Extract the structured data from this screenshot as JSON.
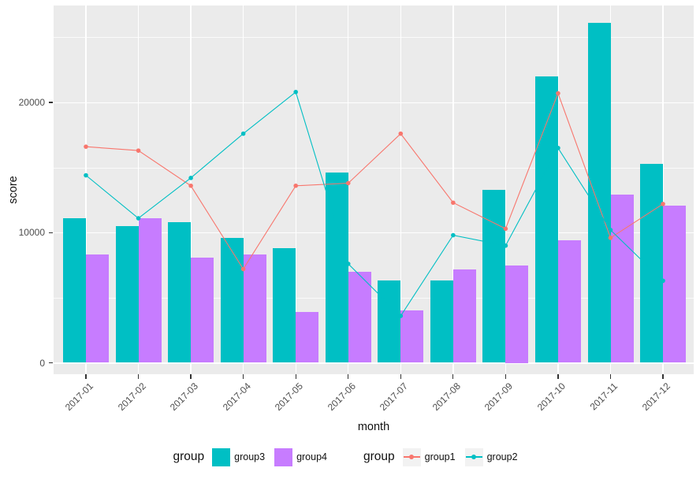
{
  "y_axis": {
    "title": "score",
    "ticks": [
      {
        "label": "0",
        "value": 0
      },
      {
        "label": "10000",
        "value": 10000
      },
      {
        "label": "20000",
        "value": 20000
      }
    ]
  },
  "x_axis": {
    "title": "month"
  },
  "legend": {
    "groups": [
      {
        "title": "group",
        "items": [
          {
            "label": "group3",
            "color": "#00BFC4",
            "type": "fill"
          },
          {
            "label": "group4",
            "color": "#C77CFF",
            "type": "fill"
          }
        ]
      },
      {
        "title": "group",
        "items": [
          {
            "label": "group1",
            "color": "#F8766D",
            "type": "line"
          },
          {
            "label": "group2",
            "color": "#00BFC4",
            "type": "line"
          }
        ]
      }
    ]
  },
  "colors": {
    "panel_background": "#EBEBEB",
    "gridline": "#FFFFFF",
    "bar_group3": "#00BFC4",
    "bar_group4": "#C77CFF",
    "line_group1": "#F8766D",
    "line_group2": "#00BFC4",
    "axis_text": "#4D4D4D"
  },
  "chart_data": {
    "type": "bar",
    "title": "",
    "xlabel": "month",
    "ylabel": "score",
    "categories": [
      "2017-01",
      "2017-02",
      "2017-03",
      "2017-04",
      "2017-05",
      "2017-06",
      "2017-07",
      "2017-08",
      "2017-09",
      "2017-10",
      "2017-11",
      "2017-12"
    ],
    "series": [
      {
        "name": "group3",
        "type": "bar",
        "color": "#00BFC4",
        "values": [
          11100,
          10500,
          10800,
          9600,
          8800,
          14600,
          6300,
          6300,
          13300,
          22000,
          26100,
          15300
        ]
      },
      {
        "name": "group4",
        "type": "bar",
        "color": "#C77CFF",
        "values": [
          8300,
          11100,
          8100,
          8300,
          3900,
          7000,
          4000,
          7200,
          7500,
          9400,
          12900,
          12100
        ]
      },
      {
        "name": "group1",
        "type": "line",
        "color": "#F8766D",
        "values": [
          16600,
          16300,
          13600,
          7200,
          13600,
          13800,
          17600,
          12300,
          10300,
          20700,
          9600,
          12200
        ]
      },
      {
        "name": "group2",
        "type": "line",
        "color": "#00BFC4",
        "values": [
          14400,
          11100,
          14200,
          17600,
          20800,
          7600,
          3600,
          9800,
          9000,
          16500,
          10200,
          6300
        ]
      }
    ],
    "ylim": [
      0,
      27400
    ],
    "y_major_gridlines": [
      0,
      10000,
      20000
    ],
    "y_minor_gridlines": [
      5000,
      15000,
      25000
    ],
    "grid": true,
    "legend_position": "bottom"
  }
}
